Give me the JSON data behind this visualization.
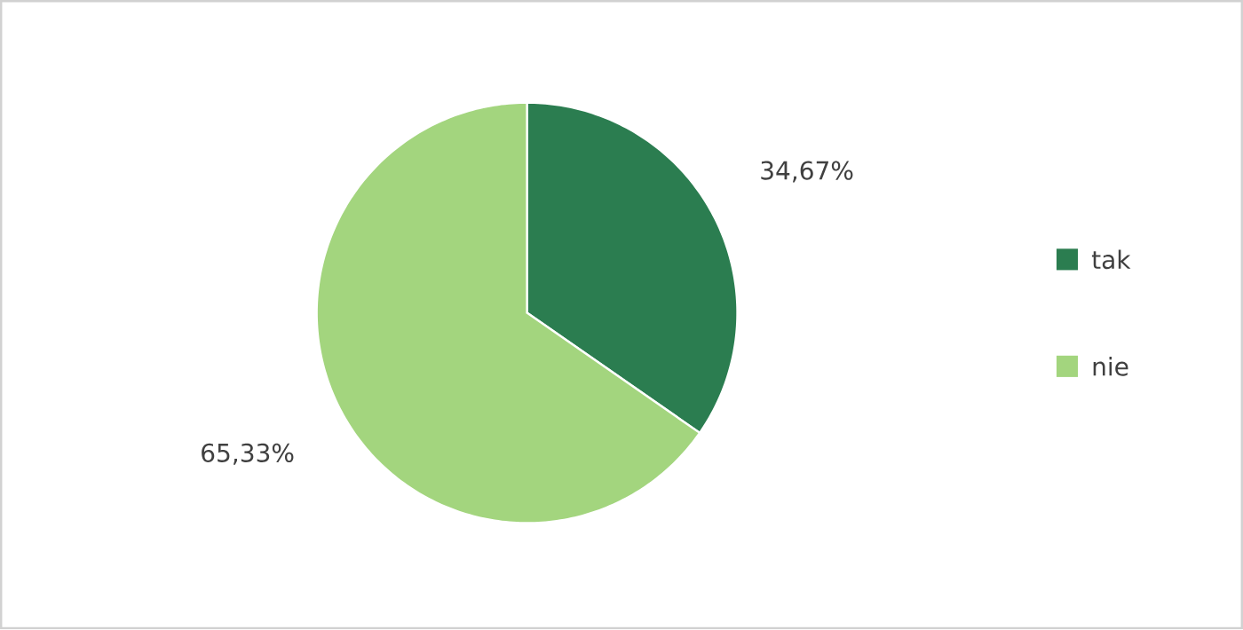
{
  "chart_data": {
    "type": "pie",
    "categories": [
      "tak",
      "nie"
    ],
    "values": [
      34.67,
      65.33
    ],
    "colors": [
      "#2b7d50",
      "#a3d57e"
    ],
    "value_labels": [
      "34,67%",
      "65,33%"
    ],
    "legend": "right"
  }
}
